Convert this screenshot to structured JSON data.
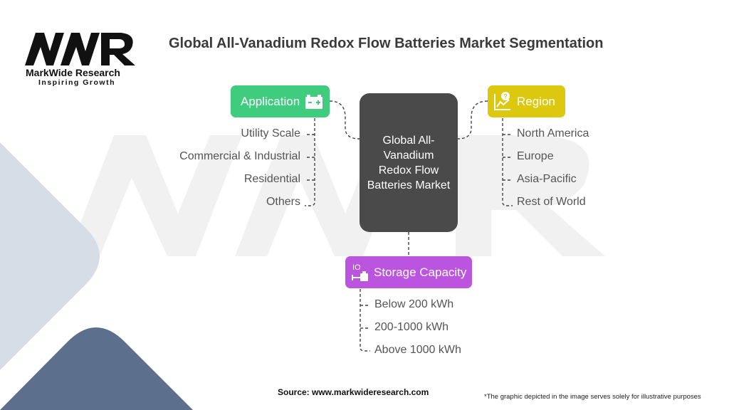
{
  "brand": {
    "logo_letters": "MWR",
    "name": "MarkWide Research",
    "tagline": "Inspiring Growth"
  },
  "title": "Global All-Vanadium Redox Flow Batteries Market Segmentation",
  "center": {
    "label": "Global All-Vanadium Redox Flow Batteries Market"
  },
  "segments": {
    "application": {
      "label": "Application",
      "icon": "battery-icon",
      "color": "#3fcc7f",
      "items": [
        "Utility Scale",
        "Commercial & Industrial",
        "Residential",
        "Others"
      ]
    },
    "region": {
      "label": "Region",
      "icon": "chart-growth-icon",
      "color": "#dcc80f",
      "items": [
        "North America",
        "Europe",
        "Asia-Pacific",
        "Rest of World"
      ]
    },
    "storage_capacity": {
      "label": "Storage Capacity",
      "icon": "storage-capacity-icon",
      "icon_text": "IO",
      "color": "#bb55e0",
      "items": [
        "Below 200 kWh",
        "200-1000 kWh",
        "Above 1000 kWh"
      ]
    }
  },
  "footer": {
    "source": "Source: www.markwideresearch.com",
    "note": "*The graphic depicted in the image serves solely for illustrative purposes"
  }
}
